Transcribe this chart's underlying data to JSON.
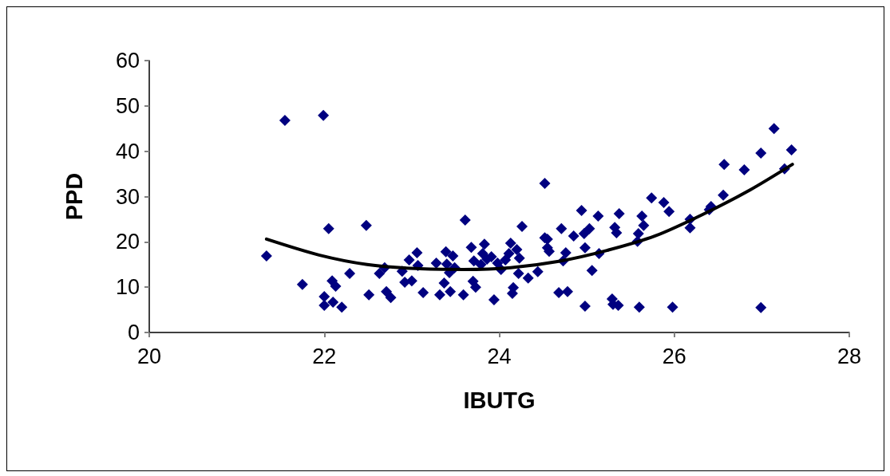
{
  "chart_data": {
    "type": "scatter",
    "xlabel": "IBUTG",
    "ylabel": "PPD",
    "xlim": [
      20,
      28
    ],
    "xticks": [
      20,
      22,
      24,
      26,
      28
    ],
    "ylim": [
      0,
      60
    ],
    "yticks": [
      0,
      10,
      20,
      30,
      40,
      50,
      60
    ],
    "grid": false,
    "marker": "diamond",
    "series": [
      {
        "color": "#000080",
        "x": [
          21.34,
          21.55,
          21.75,
          21.99,
          22.0,
          22.0,
          22.05,
          22.09,
          22.13,
          22.1,
          22.2,
          22.29,
          22.48,
          22.51,
          22.63,
          22.69,
          22.71,
          22.76,
          22.89,
          22.92,
          22.97,
          23.0,
          23.06,
          23.07,
          23.13,
          23.28,
          23.32,
          23.37,
          23.39,
          23.4,
          23.43,
          23.44,
          23.47,
          23.49,
          23.59,
          23.61,
          23.68,
          23.7,
          23.71,
          23.73,
          23.79,
          23.81,
          23.83,
          23.86,
          23.91,
          23.94,
          23.98,
          24.02,
          24.07,
          24.11,
          24.13,
          24.15,
          24.16,
          24.2,
          24.23,
          24.22,
          24.26,
          24.33,
          24.44,
          24.52,
          24.52,
          24.55,
          24.55,
          24.57,
          24.68,
          24.71,
          24.73,
          24.76,
          24.78,
          24.85,
          24.94,
          24.97,
          24.98,
          24.98,
          25.03,
          25.06,
          25.14,
          25.13,
          25.29,
          25.3,
          25.32,
          25.34,
          25.36,
          25.37,
          25.58,
          25.59,
          25.6,
          25.63,
          25.65,
          25.74,
          25.88,
          25.94,
          25.98,
          26.18,
          26.18,
          26.4,
          26.42,
          26.56,
          26.57,
          26.8,
          26.99,
          26.99,
          27.14,
          27.26,
          27.34
        ],
        "values": [
          16.9,
          46.8,
          10.6,
          47.9,
          7.9,
          6.0,
          22.9,
          11.4,
          10.2,
          6.7,
          5.6,
          13.0,
          23.6,
          8.3,
          13.0,
          14.3,
          9.0,
          7.7,
          13.5,
          11.1,
          16.0,
          11.4,
          17.6,
          14.8,
          8.8,
          15.3,
          8.3,
          10.9,
          17.8,
          15.1,
          13.2,
          9.0,
          16.9,
          14.3,
          8.3,
          24.8,
          18.8,
          11.3,
          15.8,
          10.0,
          15.0,
          17.4,
          19.5,
          16.2,
          16.7,
          7.2,
          15.3,
          13.9,
          16.0,
          17.4,
          19.7,
          8.6,
          9.9,
          18.3,
          16.4,
          13.0,
          23.4,
          12.0,
          13.4,
          32.9,
          20.9,
          20.6,
          18.7,
          17.9,
          8.8,
          22.9,
          15.8,
          17.6,
          9.0,
          21.3,
          26.9,
          21.8,
          18.7,
          5.8,
          22.9,
          13.7,
          17.4,
          25.7,
          7.4,
          6.2,
          23.2,
          22.0,
          6.0,
          26.2,
          20.1,
          21.8,
          5.6,
          25.7,
          23.6,
          29.7,
          28.7,
          26.7,
          5.6,
          25.0,
          23.1,
          27.1,
          27.8,
          30.3,
          37.1,
          35.9,
          5.5,
          39.6,
          45.0,
          36.1,
          40.3
        ]
      },
      {
        "type": "line",
        "color": "#000000",
        "marker": "none",
        "line_style": "solid",
        "x": [
          21.34,
          21.94,
          22.49,
          23.04,
          23.59,
          24.13,
          24.68,
          25.23,
          25.78,
          26.32,
          26.87,
          27.35
        ],
        "values": [
          20.6,
          17.1,
          15.0,
          14.1,
          13.9,
          14.3,
          15.7,
          18.1,
          21.3,
          26.0,
          31.5,
          37.1
        ]
      }
    ]
  }
}
